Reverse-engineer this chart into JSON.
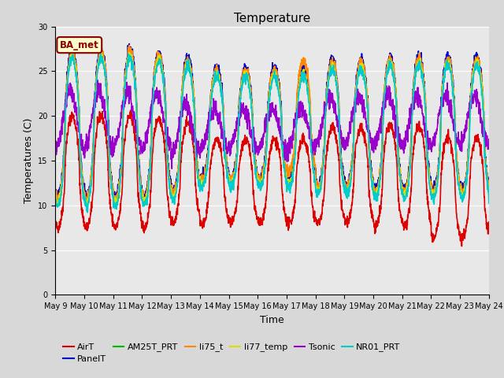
{
  "title": "Temperature",
  "ylabel": "Temperatures (C)",
  "xlabel": "Time",
  "annotation": "BA_met",
  "ylim": [
    0,
    30
  ],
  "ytick_labels": [
    0,
    5,
    10,
    15,
    20,
    25,
    30
  ],
  "xtick_labels": [
    "May 9",
    "May 10",
    "May 11",
    "May 12",
    "May 13",
    "May 14",
    "May 15",
    "May 16",
    "May 17",
    "May 18",
    "May 19",
    "May 20",
    "May 21",
    "May 22",
    "May 23",
    "May 24"
  ],
  "series": {
    "AirT": {
      "color": "#dd0000",
      "lw": 1.2
    },
    "PanelT": {
      "color": "#0000cc",
      "lw": 1.2
    },
    "AM25T_PRT": {
      "color": "#00bb00",
      "lw": 1.2
    },
    "li75_t": {
      "color": "#ff8800",
      "lw": 1.2
    },
    "li77_temp": {
      "color": "#dddd00",
      "lw": 1.2
    },
    "Tsonic": {
      "color": "#9900cc",
      "lw": 1.2
    },
    "NR01_PRT": {
      "color": "#00cccc",
      "lw": 1.2
    }
  },
  "fig_bg": "#d8d8d8",
  "ax_bg": "#e8e8e8",
  "title_fontsize": 11,
  "axis_fontsize": 9,
  "tick_fontsize": 7,
  "legend_fontsize": 8
}
